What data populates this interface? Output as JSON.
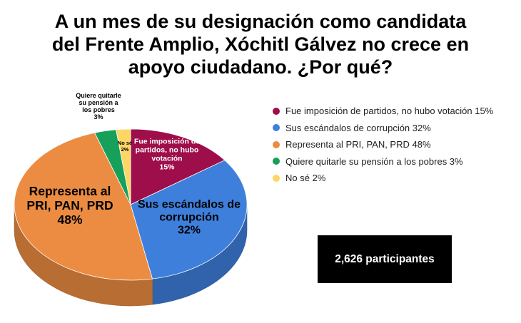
{
  "title": {
    "line1": "A un mes de su designación como candidata",
    "line2": "del Frente Amplio, Xóchitl Gálvez no crece en",
    "line3": "apoyo ciudadano. ¿Por qué?"
  },
  "chart_data": {
    "type": "pie",
    "title": "A un mes de su designación como candidata del Frente Amplio, Xóchitl Gálvez no crece en apoyo ciudadano. ¿Por qué?",
    "legend_position": "right",
    "slices": [
      {
        "label": "Fue imposición de partidos, no hubo votación",
        "value": 15,
        "color": "#9e0e4a",
        "legend_text": "Fue imposición de partidos, no hubo votación 15%",
        "label_lines": [
          "Fue imposición de",
          "partidos, no hubo",
          "votación",
          "15%"
        ]
      },
      {
        "label": "Sus escándalos de corrupción",
        "value": 32,
        "color": "#3e7fdb",
        "legend_text": "Sus escándalos de corrupción 32%",
        "label_lines": [
          "Sus escándalos de",
          "corrupción",
          "32%"
        ]
      },
      {
        "label": "Representa al PRI, PAN, PRD",
        "value": 48,
        "color": "#ec8c42",
        "legend_text": "Representa al PRI, PAN, PRD 48%",
        "label_lines": [
          "Representa al",
          "PRI, PAN, PRD",
          "48%"
        ]
      },
      {
        "label": "Quiere quitarle su pensión a los pobres",
        "value": 3,
        "color": "#16a05a",
        "legend_text": "Quiere quitarle su pensión a los pobres 3%",
        "label_lines": [
          "Quiere quitarle",
          "su pensión a",
          "los pobres",
          "3%"
        ]
      },
      {
        "label": "No sé",
        "value": 2,
        "color": "#fdd663",
        "legend_text": "No sé 2%",
        "label_lines": [
          "No sé",
          "2%"
        ]
      }
    ]
  },
  "participants": "2,626 participantes"
}
